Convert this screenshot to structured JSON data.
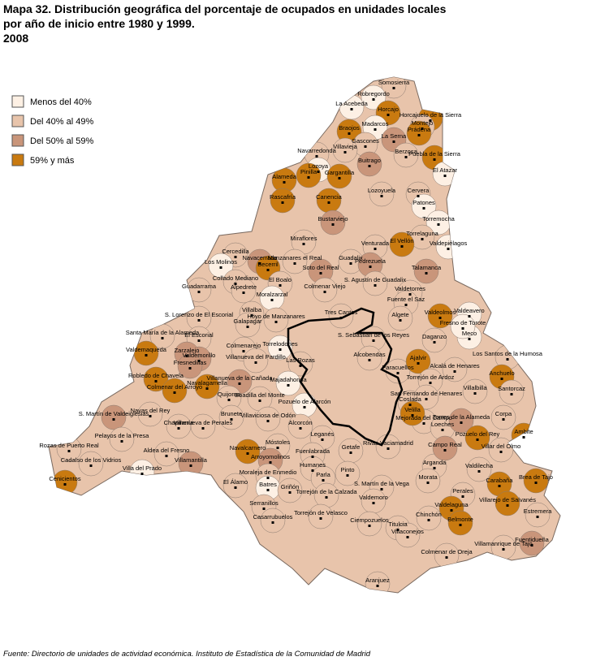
{
  "header": {
    "title_lines": [
      "Mapa 32. Distribución geográfica del porcentaje de ocupados en unidades locales",
      "por año de inicio entre 1980 y 1999.",
      "2008"
    ]
  },
  "legend": [
    {
      "label": "Menos del 40%",
      "color": "#fdf0e4"
    },
    {
      "label": "Del 40% al 49%",
      "color": "#e8c4ab"
    },
    {
      "label": "Del 50% al 59%",
      "color": "#c9957a"
    },
    {
      "label": "59% y más",
      "color": "#c97a10"
    }
  ],
  "municipalities": [
    {
      "name": "Somosierra",
      "class": 1
    },
    {
      "name": "Robregordo",
      "class": 0
    },
    {
      "name": "La Acebeda",
      "class": 0
    },
    {
      "name": "Horcajo",
      "class": 3
    },
    {
      "name": "Horcajuelo de la Sierra",
      "class": 3
    },
    {
      "name": "Madarcos",
      "class": 0
    },
    {
      "name": "Montejo",
      "class": 1
    },
    {
      "name": "Prádena",
      "class": 3
    },
    {
      "name": "Braojos",
      "class": 3
    },
    {
      "name": "Gascones",
      "class": 1
    },
    {
      "name": "Villavieja",
      "class": 1
    },
    {
      "name": "La Serna",
      "class": 2
    },
    {
      "name": "Puebla de la Sierra",
      "class": 3
    },
    {
      "name": "Navarredonda",
      "class": 1
    },
    {
      "name": "Buitrago",
      "class": 2
    },
    {
      "name": "Berzosa",
      "class": 1
    },
    {
      "name": "Lozoya",
      "class": 0
    },
    {
      "name": "El Atazar",
      "class": 0
    },
    {
      "name": "Pinilla",
      "class": 3
    },
    {
      "name": "Gargantilla",
      "class": 3
    },
    {
      "name": "Alameda",
      "class": 3
    },
    {
      "name": "Rascafría",
      "class": 3
    },
    {
      "name": "Canencia",
      "class": 3
    },
    {
      "name": "Lozoyuela",
      "class": 1
    },
    {
      "name": "Cervera",
      "class": 1
    },
    {
      "name": "Patones",
      "class": 0
    },
    {
      "name": "Bustarviejo",
      "class": 2
    },
    {
      "name": "Torremocha",
      "class": 0
    },
    {
      "name": "Torrelaguna",
      "class": 1
    },
    {
      "name": "Valdepiélagos",
      "class": 0
    },
    {
      "name": "Miraflores",
      "class": 1
    },
    {
      "name": "El Vellón",
      "class": 3
    },
    {
      "name": "Venturada",
      "class": 1
    },
    {
      "name": "Guadalix",
      "class": 1
    },
    {
      "name": "Pedrezuela",
      "class": 2
    },
    {
      "name": "Talamanca",
      "class": 2
    },
    {
      "name": "Manzanares el Real",
      "class": 1
    },
    {
      "name": "Soto del Real",
      "class": 2
    },
    {
      "name": "Cercedilla",
      "class": 1
    },
    {
      "name": "Los Molinos",
      "class": 0
    },
    {
      "name": "Navacerrada",
      "class": 2
    },
    {
      "name": "Becerril",
      "class": 3
    },
    {
      "name": "Collado Mediano",
      "class": 1
    },
    {
      "name": "El Boalo",
      "class": 1
    },
    {
      "name": "Guadarrama",
      "class": 1
    },
    {
      "name": "Colmenar Viejo",
      "class": 1
    },
    {
      "name": "S. Agustín de Guadalix",
      "class": 1
    },
    {
      "name": "Valdetorres",
      "class": 1
    },
    {
      "name": "Fuente el Saz",
      "class": 1
    },
    {
      "name": "Alpedrete",
      "class": 1
    },
    {
      "name": "Moralzarzal",
      "class": 0
    },
    {
      "name": "Villalba",
      "class": 1
    },
    {
      "name": "Galapagar",
      "class": 1
    },
    {
      "name": "Tres Cantos",
      "class": 1
    },
    {
      "name": "Valdeolmos",
      "class": 3
    },
    {
      "name": "Valdeavero",
      "class": 0
    },
    {
      "name": "Algete",
      "class": 1
    },
    {
      "name": "S. Lorenzo de El Escorial",
      "class": 1
    },
    {
      "name": "El Escorial",
      "class": 1
    },
    {
      "name": "Hoyo de Manzanares",
      "class": 1
    },
    {
      "name": "Torrelodones",
      "class": 0
    },
    {
      "name": "Santa María de la Alameda",
      "class": 1
    },
    {
      "name": "Daganzo",
      "class": 1
    },
    {
      "name": "Meco",
      "class": 0
    },
    {
      "name": "Fresno de Torote",
      "class": 0
    },
    {
      "name": "S. Sebastián de los Reyes",
      "class": 1
    },
    {
      "name": "Alcobendas",
      "class": 1
    },
    {
      "name": "Valdemorillo",
      "class": 2
    },
    {
      "name": "Colmenarejo",
      "class": 1
    },
    {
      "name": "Villanueva del Pardillo",
      "class": 1
    },
    {
      "name": "Las Rozas",
      "class": 1
    },
    {
      "name": "Valdemaqueda",
      "class": 3
    },
    {
      "name": "Zarzalejo",
      "class": 2
    },
    {
      "name": "Robledo de Chavela",
      "class": 3
    },
    {
      "name": "Fresnedillas",
      "class": 2
    },
    {
      "name": "Navalagamella",
      "class": 3
    },
    {
      "name": "Villanueva de la Cañada",
      "class": 2
    },
    {
      "name": "Majadahonda",
      "class": 0
    },
    {
      "name": "Paracuellos",
      "class": 1
    },
    {
      "name": "Ajalvir",
      "class": 3
    },
    {
      "name": "Alcalá de Henares",
      "class": 1
    },
    {
      "name": "Los Santos de la Humosa",
      "class": 1
    },
    {
      "name": "Anchuelo",
      "class": 3
    },
    {
      "name": "Torrejón de Ardoz",
      "class": 1
    },
    {
      "name": "Coslada",
      "class": 1
    },
    {
      "name": "Boadilla del Monte",
      "class": 1
    },
    {
      "name": "Quijorna",
      "class": 1
    },
    {
      "name": "Colmenar del Arroyo",
      "class": 3
    },
    {
      "name": "Chapinería",
      "class": 1
    },
    {
      "name": "Navas del Rey",
      "class": 1
    },
    {
      "name": "Brunete",
      "class": 1
    },
    {
      "name": "Villanueva de Perales",
      "class": 1
    },
    {
      "name": "Pozuelo de Alarcón",
      "class": 0
    },
    {
      "name": "Villaviciosa de Odón",
      "class": 1
    },
    {
      "name": "San Fernando de Henares",
      "class": 1
    },
    {
      "name": "Mejorada del Campo",
      "class": 1
    },
    {
      "name": "Velilla",
      "class": 3
    },
    {
      "name": "Loeches",
      "class": 1
    },
    {
      "name": "Torres de la Alameda",
      "class": 2
    },
    {
      "name": "Villalbilla",
      "class": 1
    },
    {
      "name": "Santorcaz",
      "class": 1
    },
    {
      "name": "Corpa",
      "class": 1
    },
    {
      "name": "Ambite",
      "class": 3
    },
    {
      "name": "Pozuelo del Rey",
      "class": 3
    },
    {
      "name": "Alcorcón",
      "class": 1
    },
    {
      "name": "Leganés",
      "class": 1
    },
    {
      "name": "Getafe",
      "class": 1
    },
    {
      "name": "Rivas Vaciamadrid",
      "class": 1
    },
    {
      "name": "S. Martín de Valdeiglesias",
      "class": 2
    },
    {
      "name": "Pelayos de la Presa",
      "class": 1
    },
    {
      "name": "Villamantilla",
      "class": 2
    },
    {
      "name": "Aldea del Fresno",
      "class": 1
    },
    {
      "name": "Navalcarnero",
      "class": 3
    },
    {
      "name": "Móstoles",
      "class": 1
    },
    {
      "name": "Fuenlabrada",
      "class": 1
    },
    {
      "name": "Arroyomolinos",
      "class": 2
    },
    {
      "name": "Rozas de Puerto Real",
      "class": 1
    },
    {
      "name": "Cadalso de los Vidrios",
      "class": 1
    },
    {
      "name": "Cenicientos",
      "class": 3
    },
    {
      "name": "Villa del Prado",
      "class": 0
    },
    {
      "name": "Moraleja de Enmedio",
      "class": 1
    },
    {
      "name": "Humanes",
      "class": 1
    },
    {
      "name": "Parla",
      "class": 1
    },
    {
      "name": "Pinto",
      "class": 1
    },
    {
      "name": "Arganda",
      "class": 1
    },
    {
      "name": "Campo Real",
      "class": 2
    },
    {
      "name": "Villar del Olmo",
      "class": 1
    },
    {
      "name": "Valdilecha",
      "class": 1
    },
    {
      "name": "Carabaña",
      "class": 3
    },
    {
      "name": "Brea de Tajo",
      "class": 3
    },
    {
      "name": "Morata",
      "class": 1
    },
    {
      "name": "Perales",
      "class": 1
    },
    {
      "name": "Valdelaguna",
      "class": 3
    },
    {
      "name": "Villarejo de Salvanés",
      "class": 3
    },
    {
      "name": "Estremera",
      "class": 1
    },
    {
      "name": "El Álamo",
      "class": 1
    },
    {
      "name": "Batres",
      "class": 0
    },
    {
      "name": "Serranillos",
      "class": 1
    },
    {
      "name": "Griñón",
      "class": 1
    },
    {
      "name": "Torrejón de la Calzada",
      "class": 1
    },
    {
      "name": "S. Martín de la Vega",
      "class": 1
    },
    {
      "name": "Valdemoro",
      "class": 1
    },
    {
      "name": "Casarrubuelos",
      "class": 1
    },
    {
      "name": "Torrejón de Velasco",
      "class": 1
    },
    {
      "name": "Ciempozuelos",
      "class": 1
    },
    {
      "name": "Chinchón",
      "class": 1
    },
    {
      "name": "Belmonte",
      "class": 3
    },
    {
      "name": "Titulcia",
      "class": 1
    },
    {
      "name": "Villaconejos",
      "class": 1
    },
    {
      "name": "Fuentidueña",
      "class": 2
    },
    {
      "name": "Villamanrique de Tajo",
      "class": 1
    },
    {
      "name": "Colmenar de Oreja",
      "class": 1
    },
    {
      "name": "Aranjuez",
      "class": 1
    }
  ],
  "footer": {
    "source": "Fuente: Directorio de unidades de actividad económica. Instituto de Estadística de la Comunidad de Madrid"
  }
}
